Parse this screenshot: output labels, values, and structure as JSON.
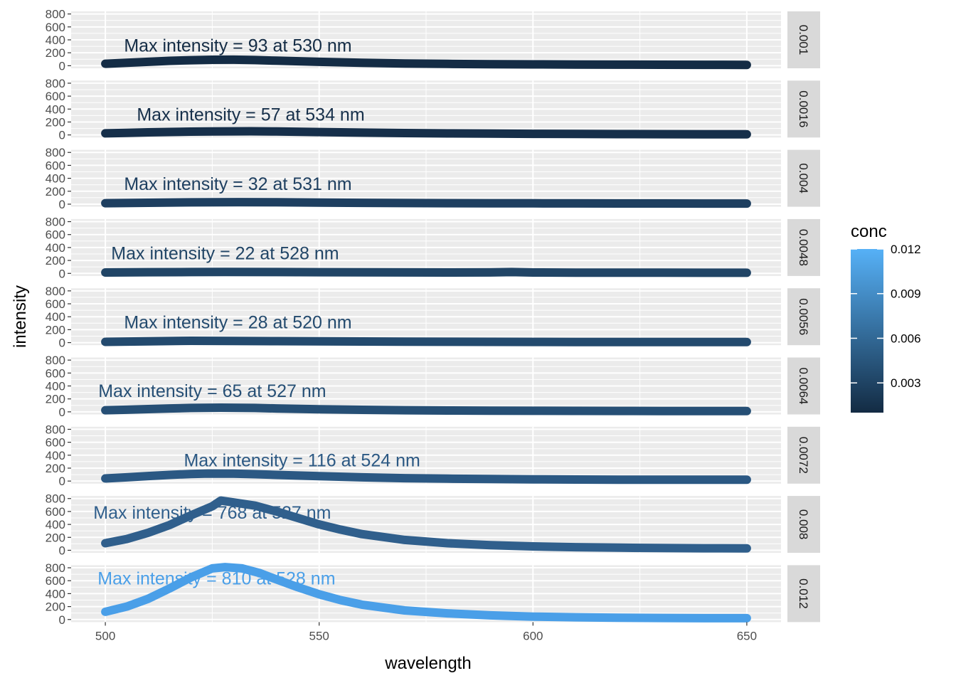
{
  "chart_data": {
    "type": "line",
    "layout": "faceted vertical panels, one per concentration",
    "xlabel": "wavelength",
    "ylabel": "intensity",
    "xlim": [
      492,
      658
    ],
    "ylim": [
      -40,
      840
    ],
    "x_ticks": [
      500,
      550,
      600,
      650
    ],
    "y_ticks": [
      0,
      200,
      400,
      600,
      800
    ],
    "grid": true,
    "legend": {
      "title": "conc",
      "placement": "right",
      "type": "colorbar",
      "range": [
        0.001,
        0.012
      ],
      "ticks": [
        0.003,
        0.006,
        0.009,
        0.012
      ],
      "tick_labels": [
        "0.003",
        "0.006",
        "0.009",
        "0.012"
      ],
      "color_low": "#132B43",
      "color_high": "#56B1F7"
    },
    "colors": {
      "panel_background": "#EBEBEB",
      "grid": "#FFFFFF",
      "strip_background": "#D9D9D9",
      "tick": "#333333"
    },
    "panels": [
      {
        "conc": 0.001,
        "strip_label": "0.001",
        "color": "#142C45",
        "annotation": "Max intensity = 93 at 530 nm",
        "annot_x": 531,
        "annot_y": 220,
        "points": [
          [
            500,
            30
          ],
          [
            505,
            45
          ],
          [
            510,
            60
          ],
          [
            515,
            75
          ],
          [
            520,
            85
          ],
          [
            525,
            92
          ],
          [
            530,
            93
          ],
          [
            535,
            88
          ],
          [
            540,
            78
          ],
          [
            550,
            60
          ],
          [
            560,
            45
          ],
          [
            570,
            35
          ],
          [
            580,
            28
          ],
          [
            590,
            24
          ],
          [
            600,
            20
          ],
          [
            610,
            18
          ],
          [
            620,
            16
          ],
          [
            630,
            15
          ],
          [
            640,
            14
          ],
          [
            650,
            13
          ]
        ]
      },
      {
        "conc": 0.0016,
        "strip_label": "0.0016",
        "color": "#162F4A",
        "annotation": "Max intensity = 57 at 534 nm",
        "annot_x": 534,
        "annot_y": 220,
        "points": [
          [
            500,
            25
          ],
          [
            505,
            32
          ],
          [
            510,
            40
          ],
          [
            515,
            46
          ],
          [
            520,
            51
          ],
          [
            525,
            55
          ],
          [
            530,
            56
          ],
          [
            534,
            57
          ],
          [
            540,
            53
          ],
          [
            550,
            45
          ],
          [
            560,
            36
          ],
          [
            570,
            29
          ],
          [
            580,
            24
          ],
          [
            590,
            20
          ],
          [
            600,
            17
          ],
          [
            610,
            15
          ],
          [
            620,
            13
          ],
          [
            630,
            12
          ],
          [
            640,
            11
          ],
          [
            650,
            10
          ]
        ]
      },
      {
        "conc": 0.004,
        "strip_label": "0.004",
        "color": "#1E3F60",
        "annotation": "Max intensity = 32 at 531 nm",
        "annot_x": 531,
        "annot_y": 220,
        "points": [
          [
            500,
            15
          ],
          [
            510,
            22
          ],
          [
            520,
            28
          ],
          [
            531,
            32
          ],
          [
            540,
            29
          ],
          [
            550,
            24
          ],
          [
            560,
            20
          ],
          [
            570,
            17
          ],
          [
            580,
            15
          ],
          [
            590,
            14
          ],
          [
            600,
            13
          ],
          [
            610,
            12
          ],
          [
            620,
            11
          ],
          [
            630,
            11
          ],
          [
            640,
            10
          ],
          [
            650,
            10
          ]
        ]
      },
      {
        "conc": 0.0048,
        "strip_label": "0.0048",
        "color": "#214566",
        "annotation": "Max intensity = 22 at 528 nm",
        "annot_x": 528,
        "annot_y": 220,
        "points": [
          [
            500,
            14
          ],
          [
            510,
            18
          ],
          [
            520,
            21
          ],
          [
            528,
            22
          ],
          [
            540,
            20
          ],
          [
            550,
            18
          ],
          [
            560,
            16
          ],
          [
            570,
            15
          ],
          [
            580,
            14
          ],
          [
            590,
            15
          ],
          [
            595,
            20
          ],
          [
            600,
            14
          ],
          [
            610,
            12
          ],
          [
            620,
            11
          ],
          [
            630,
            11
          ],
          [
            640,
            10
          ],
          [
            650,
            10
          ]
        ]
      },
      {
        "conc": 0.0056,
        "strip_label": "0.0056",
        "color": "#234A6E",
        "annotation": "Max intensity = 28 at 520 nm",
        "annot_x": 531,
        "annot_y": 220,
        "points": [
          [
            500,
            12
          ],
          [
            510,
            20
          ],
          [
            520,
            28
          ],
          [
            530,
            26
          ],
          [
            540,
            23
          ],
          [
            550,
            20
          ],
          [
            560,
            17
          ],
          [
            570,
            15
          ],
          [
            580,
            13
          ],
          [
            590,
            12
          ],
          [
            600,
            11
          ],
          [
            610,
            10
          ],
          [
            620,
            10
          ],
          [
            630,
            9
          ],
          [
            640,
            9
          ],
          [
            650,
            9
          ]
        ]
      },
      {
        "conc": 0.0064,
        "strip_label": "0.0064",
        "color": "#264F75",
        "annotation": "Max intensity = 65 at 527 nm",
        "annot_x": 525,
        "annot_y": 230,
        "points": [
          [
            500,
            25
          ],
          [
            505,
            33
          ],
          [
            510,
            42
          ],
          [
            515,
            52
          ],
          [
            520,
            60
          ],
          [
            527,
            65
          ],
          [
            535,
            60
          ],
          [
            540,
            52
          ],
          [
            550,
            40
          ],
          [
            560,
            31
          ],
          [
            570,
            25
          ],
          [
            580,
            21
          ],
          [
            590,
            18
          ],
          [
            600,
            16
          ],
          [
            610,
            15
          ],
          [
            620,
            14
          ],
          [
            630,
            13
          ],
          [
            640,
            13
          ],
          [
            650,
            12
          ]
        ]
      },
      {
        "conc": 0.0072,
        "strip_label": "0.0072",
        "color": "#2B5883",
        "annotation": "Max intensity = 116 at 524 nm",
        "annot_x": 546,
        "annot_y": 230,
        "points": [
          [
            500,
            40
          ],
          [
            505,
            58
          ],
          [
            510,
            78
          ],
          [
            515,
            95
          ],
          [
            520,
            110
          ],
          [
            524,
            116
          ],
          [
            530,
            114
          ],
          [
            535,
            106
          ],
          [
            540,
            95
          ],
          [
            550,
            75
          ],
          [
            560,
            58
          ],
          [
            570,
            45
          ],
          [
            580,
            37
          ],
          [
            590,
            31
          ],
          [
            600,
            27
          ],
          [
            610,
            24
          ],
          [
            620,
            22
          ],
          [
            630,
            21
          ],
          [
            640,
            20
          ],
          [
            650,
            20
          ]
        ]
      },
      {
        "conc": 0.008,
        "strip_label": "0.008",
        "color": "#305F8C",
        "annotation": "Max intensity = 768 at 527 nm",
        "annot_x": 525,
        "annot_y": 490,
        "points": [
          [
            500,
            110
          ],
          [
            505,
            175
          ],
          [
            510,
            270
          ],
          [
            515,
            390
          ],
          [
            520,
            540
          ],
          [
            525,
            680
          ],
          [
            527,
            768
          ],
          [
            530,
            740
          ],
          [
            535,
            690
          ],
          [
            540,
            600
          ],
          [
            545,
            500
          ],
          [
            550,
            400
          ],
          [
            555,
            320
          ],
          [
            560,
            250
          ],
          [
            570,
            160
          ],
          [
            580,
            110
          ],
          [
            590,
            80
          ],
          [
            600,
            60
          ],
          [
            610,
            48
          ],
          [
            620,
            40
          ],
          [
            630,
            35
          ],
          [
            640,
            32
          ],
          [
            650,
            30
          ]
        ]
      },
      {
        "conc": 0.012,
        "strip_label": "0.012",
        "color": "#4A9FE8",
        "annotation": "Max intensity = 810 at 528 nm",
        "annot_x": 526,
        "annot_y": 540,
        "points": [
          [
            500,
            120
          ],
          [
            505,
            200
          ],
          [
            510,
            320
          ],
          [
            515,
            480
          ],
          [
            520,
            650
          ],
          [
            525,
            790
          ],
          [
            528,
            810
          ],
          [
            532,
            790
          ],
          [
            536,
            720
          ],
          [
            540,
            620
          ],
          [
            545,
            500
          ],
          [
            550,
            390
          ],
          [
            555,
            300
          ],
          [
            560,
            230
          ],
          [
            570,
            140
          ],
          [
            580,
            95
          ],
          [
            590,
            65
          ],
          [
            600,
            45
          ],
          [
            610,
            35
          ],
          [
            620,
            28
          ],
          [
            630,
            24
          ],
          [
            640,
            21
          ],
          [
            650,
            20
          ]
        ]
      }
    ]
  }
}
